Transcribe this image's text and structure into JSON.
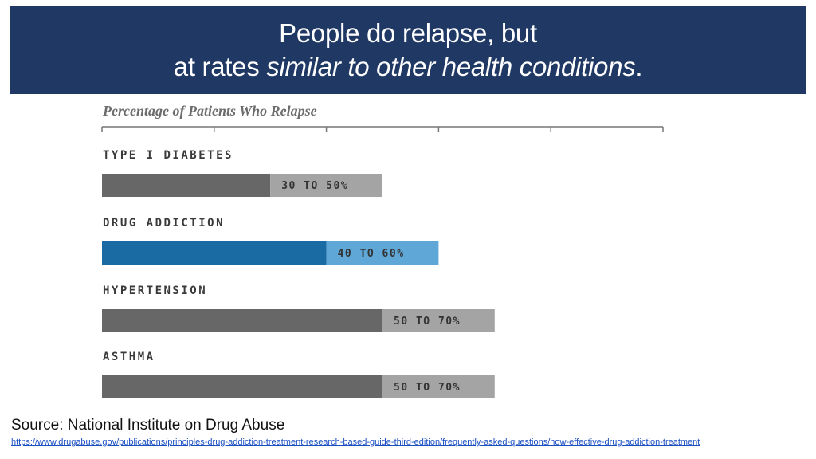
{
  "header": {
    "line1": "People do relapse, but",
    "line2_plain": "at rates ",
    "line2_italic": "similar to other health conditions",
    "line2_end": "."
  },
  "footer": {
    "source": "Source: National Institute on Drug Abuse",
    "link": "https://www.drugabuse.gov/publications/principles-drug-addiction-treatment-research-based-guide-third-edition/frequently-asked-questions/how-effective-drug-addiction-treatment"
  },
  "colors": {
    "header_bg": "#1f3864",
    "bar_dark": "#676767",
    "bar_light": "#a4a4a4",
    "highlight_dark": "#1a6aa3",
    "highlight_light": "#5ea7d6"
  },
  "chart_data": {
    "type": "bar",
    "orientation": "horizontal",
    "title": "Percentage of Patients Who Relapse",
    "xlim": [
      0,
      100
    ],
    "ticks": [
      0,
      20,
      40,
      60,
      80,
      100
    ],
    "categories": [
      "TYPE I DIABETES",
      "DRUG ADDICTION",
      "HYPERTENSION",
      "ASTHMA"
    ],
    "ranges": [
      [
        30,
        50
      ],
      [
        40,
        60
      ],
      [
        50,
        70
      ],
      [
        50,
        70
      ]
    ],
    "range_labels": [
      "30 TO 50%",
      "40 TO 60%",
      "50 TO 70%",
      "50 TO 70%"
    ],
    "highlight": "DRUG ADDICTION"
  }
}
